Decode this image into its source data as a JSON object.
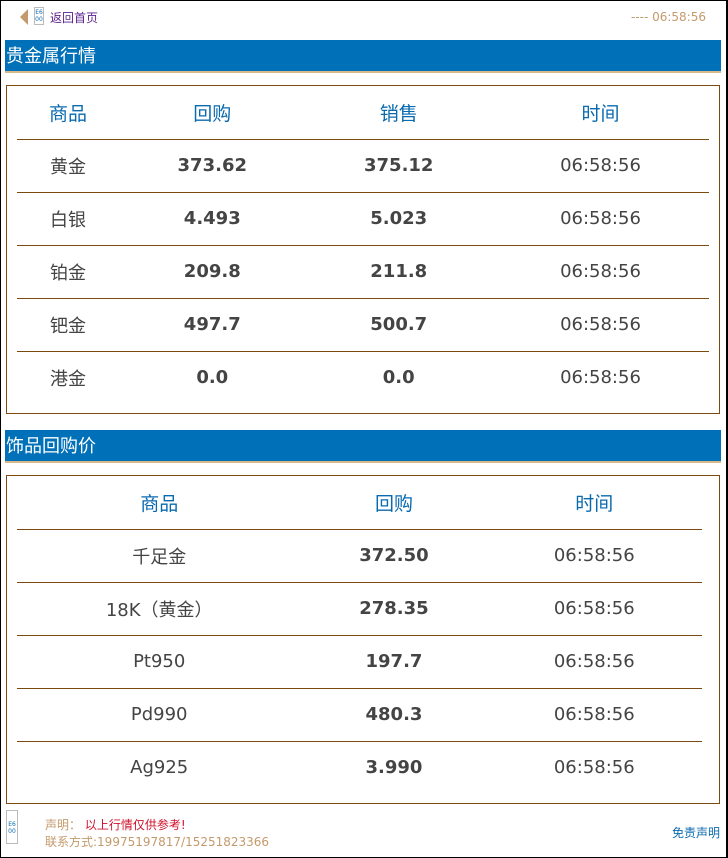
{
  "header": {
    "back_label": "返回首页",
    "clock": "---- 06:58:56",
    "broken_icon_text": "E6 00"
  },
  "precious": {
    "title": "贵金属行情",
    "columns": [
      "商品",
      "回购",
      "销售",
      "时间"
    ],
    "rows": [
      [
        "黄金",
        "373.62",
        "375.12",
        "06:58:56"
      ],
      [
        "白银",
        "4.493",
        "5.023",
        "06:58:56"
      ],
      [
        "铂金",
        "209.8",
        "211.8",
        "06:58:56"
      ],
      [
        "钯金",
        "497.7",
        "500.7",
        "06:58:56"
      ],
      [
        "港金",
        "0.0",
        "0.0",
        "06:58:56"
      ]
    ]
  },
  "jewelry": {
    "title": "饰品回购价",
    "columns": [
      "商品",
      "回购",
      "时间"
    ],
    "rows": [
      [
        "千足金",
        "372.50",
        "06:58:56"
      ],
      [
        "18K（黄金）",
        "278.35",
        "06:58:56"
      ],
      [
        "Pt950",
        "197.7",
        "06:58:56"
      ],
      [
        "Pd990",
        "480.3",
        "06:58:56"
      ],
      [
        "Ag925",
        "3.990",
        "06:58:56"
      ]
    ]
  },
  "footer": {
    "decl_label": "声明：",
    "decl_text": "以上行情仅供参考!",
    "contact": "联系方式:19975197817/15251823366",
    "disclaimer": "免责声明"
  },
  "colors": {
    "accent": "#0070b8",
    "border": "#7a4a10",
    "muted": "#c49a6c"
  }
}
